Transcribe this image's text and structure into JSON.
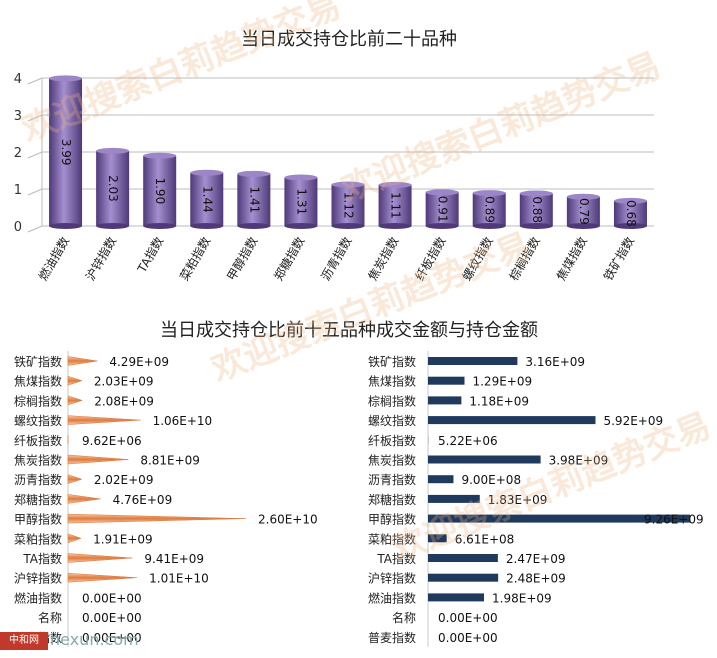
{
  "watermark": "欢迎搜索白莉趋势交易",
  "site_logo": "中和网",
  "site_text": "hexun.com",
  "chart_data": [
    {
      "type": "bar",
      "title": "当日成交持仓比前二十品种",
      "categories": [
        "燃油指数",
        "沪锌指数",
        "TA指数",
        "菜粕指数",
        "甲醇指数",
        "郑糖指数",
        "沥青指数",
        "焦炭指数",
        "纤板指数",
        "螺纹指数",
        "棕榈指数",
        "焦煤指数",
        "铁矿指数"
      ],
      "values": [
        3.99,
        2.03,
        1.9,
        1.44,
        1.41,
        1.31,
        1.12,
        1.11,
        0.91,
        0.89,
        0.88,
        0.79,
        0.68
      ],
      "value_labels": [
        "3.99",
        "2.03",
        "1.90",
        "1.44",
        "1.41",
        "1.31",
        "1.12",
        "1.11",
        "0.91",
        "0.89",
        "0.88",
        "0.79",
        "0.68"
      ],
      "ylim": [
        0,
        4
      ],
      "yticks": [
        "0",
        "1",
        "2",
        "3",
        "4"
      ],
      "grid": true,
      "color": "#7b62a8"
    },
    {
      "type": "bar",
      "orientation": "horizontal",
      "title": "当日成交持仓比前十五品种成交金额与持仓金额",
      "categories": [
        "铁矿指数",
        "焦煤指数",
        "棕榈指数",
        "螺纹指数",
        "纤板指数",
        "焦炭指数",
        "沥青指数",
        "郑糖指数",
        "甲醇指数",
        "菜粕指数",
        "TA指数",
        "沪锌指数",
        "燃油指数",
        "名称",
        "普麦指数"
      ],
      "values": [
        4290000000,
        2030000000,
        2080000000,
        10600000000,
        9620000,
        8810000000,
        2020000000,
        4760000000,
        26000000000,
        1910000000,
        9410000000,
        10100000000,
        0,
        0,
        0
      ],
      "value_labels": [
        "4.29E+09",
        "2.03E+09",
        "2.08E+09",
        "1.06E+10",
        "9.62E+06",
        "8.81E+09",
        "2.02E+09",
        "4.76E+09",
        "2.60E+10",
        "1.91E+09",
        "9.41E+09",
        "1.01E+10",
        "0.00E+00",
        "0.00E+00",
        "0.00E+00"
      ],
      "color": "#e8915a"
    },
    {
      "type": "bar",
      "orientation": "horizontal",
      "categories": [
        "铁矿指数",
        "焦煤指数",
        "棕榈指数",
        "螺纹指数",
        "纤板指数",
        "焦炭指数",
        "沥青指数",
        "郑糖指数",
        "甲醇指数",
        "菜粕指数",
        "TA指数",
        "沪锌指数",
        "燃油指数",
        "名称",
        "普麦指数"
      ],
      "values": [
        3160000000,
        1290000000,
        1180000000,
        5920000000,
        5220000,
        3980000000,
        900000000,
        1830000000,
        9260000000,
        661000000,
        2470000000,
        2480000000,
        1980000000,
        0,
        0
      ],
      "value_labels": [
        "3.16E+09",
        "1.29E+09",
        "1.18E+09",
        "5.92E+09",
        "5.22E+06",
        "3.98E+09",
        "9.00E+08",
        "1.83E+09",
        "9.26E+09",
        "6.61E+08",
        "2.47E+09",
        "2.48E+09",
        "1.98E+09",
        "0.00E+00",
        "0.00E+00"
      ],
      "color": "#1f3a5c"
    }
  ]
}
